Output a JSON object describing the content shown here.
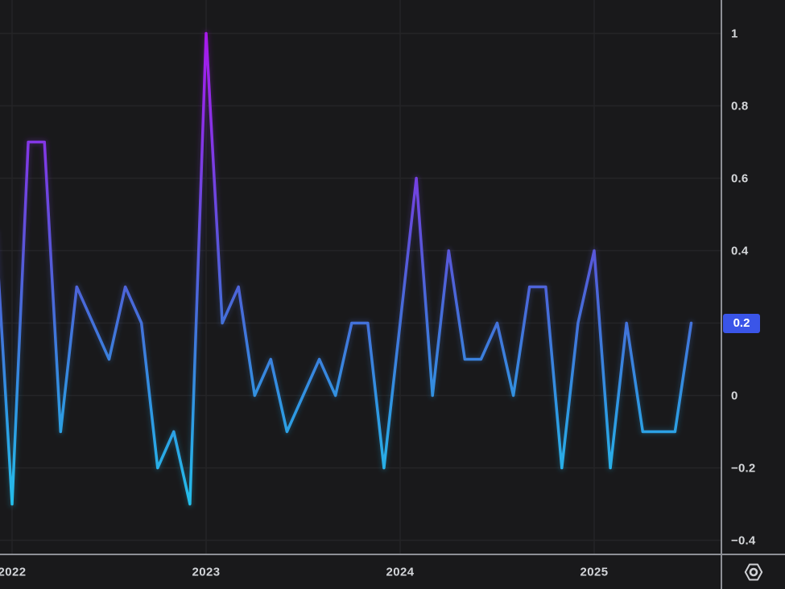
{
  "window": {
    "title": "Correlation line chart panel"
  },
  "colors": {
    "background": "#19191b",
    "grid": "#242427",
    "axis_separator": "#8e9096",
    "tick_text": "#d5d7da",
    "price_marker_bg": "#3a55e8",
    "price_marker_text": "#ffffff",
    "line_gradient": [
      {
        "offset": 0.0,
        "color": "#ab18ee"
      },
      {
        "offset": 0.25,
        "color": "#8138e6"
      },
      {
        "offset": 0.45,
        "color": "#5a55da"
      },
      {
        "offset": 0.6,
        "color": "#4470da"
      },
      {
        "offset": 0.78,
        "color": "#2f97e2"
      },
      {
        "offset": 1.0,
        "color": "#23c3ec"
      }
    ]
  },
  "axes": {
    "price": {
      "side": "right",
      "ticks": [
        {
          "label": "1",
          "value": 1.0
        },
        {
          "label": "0.8",
          "value": 0.8
        },
        {
          "label": "0.6",
          "value": 0.6
        },
        {
          "label": "0.4",
          "value": 0.4
        },
        {
          "label": "0",
          "value": 0.0
        },
        {
          "label": "−0.2",
          "value": -0.2
        },
        {
          "label": "−0.4",
          "value": -0.4
        }
      ],
      "marker": {
        "label": "0.2",
        "value": 0.2
      }
    },
    "time": {
      "side": "bottom",
      "ticks": [
        {
          "label": "2022",
          "month": "2022-01"
        },
        {
          "label": "2023",
          "month": "2023-01"
        },
        {
          "label": "2024",
          "month": "2024-01"
        },
        {
          "label": "2025",
          "month": "2025-01"
        }
      ]
    }
  },
  "icons": {
    "corner_button": "hexagon-eye-icon"
  },
  "chart_data": {
    "type": "line",
    "x_unit": "month",
    "x": [
      "2021-12",
      "2022-01",
      "2022-02",
      "2022-03",
      "2022-04",
      "2022-05",
      "2022-06",
      "2022-07",
      "2022-08",
      "2022-09",
      "2022-10",
      "2022-11",
      "2022-12",
      "2023-01",
      "2023-02",
      "2023-03",
      "2023-04",
      "2023-05",
      "2023-06",
      "2023-07",
      "2023-08",
      "2023-09",
      "2023-10",
      "2023-11",
      "2023-12",
      "2024-01",
      "2024-02",
      "2024-03",
      "2024-04",
      "2024-05",
      "2024-06",
      "2024-07",
      "2024-08",
      "2024-09",
      "2024-10",
      "2024-11",
      "2024-12",
      "2025-01",
      "2025-02",
      "2025-03",
      "2025-04",
      "2025-05",
      "2025-06",
      "2025-07"
    ],
    "values": [
      0.45,
      -0.3,
      0.7,
      0.7,
      -0.1,
      0.3,
      0.2,
      0.1,
      0.3,
      0.2,
      -0.2,
      -0.1,
      -0.3,
      1.0,
      0.2,
      0.3,
      0.0,
      0.1,
      -0.1,
      0.0,
      0.1,
      0.0,
      0.2,
      0.2,
      -0.2,
      0.2,
      0.6,
      0.0,
      0.4,
      0.1,
      0.1,
      0.2,
      0.0,
      0.3,
      0.3,
      -0.2,
      0.2,
      0.4,
      -0.2,
      0.2,
      -0.1,
      -0.1,
      -0.1,
      0.2
    ],
    "last_value": 0.2,
    "ylim": [
      -0.44,
      1.09
    ],
    "y_ticks": [
      1,
      0.8,
      0.6,
      0.4,
      0.2,
      0,
      -0.2,
      -0.4
    ],
    "x_tick_years": [
      "2022",
      "2023",
      "2024",
      "2025"
    ],
    "grid": true,
    "legend": false,
    "note": "first point (2021-12) is clipped at the left edge of the pane"
  }
}
